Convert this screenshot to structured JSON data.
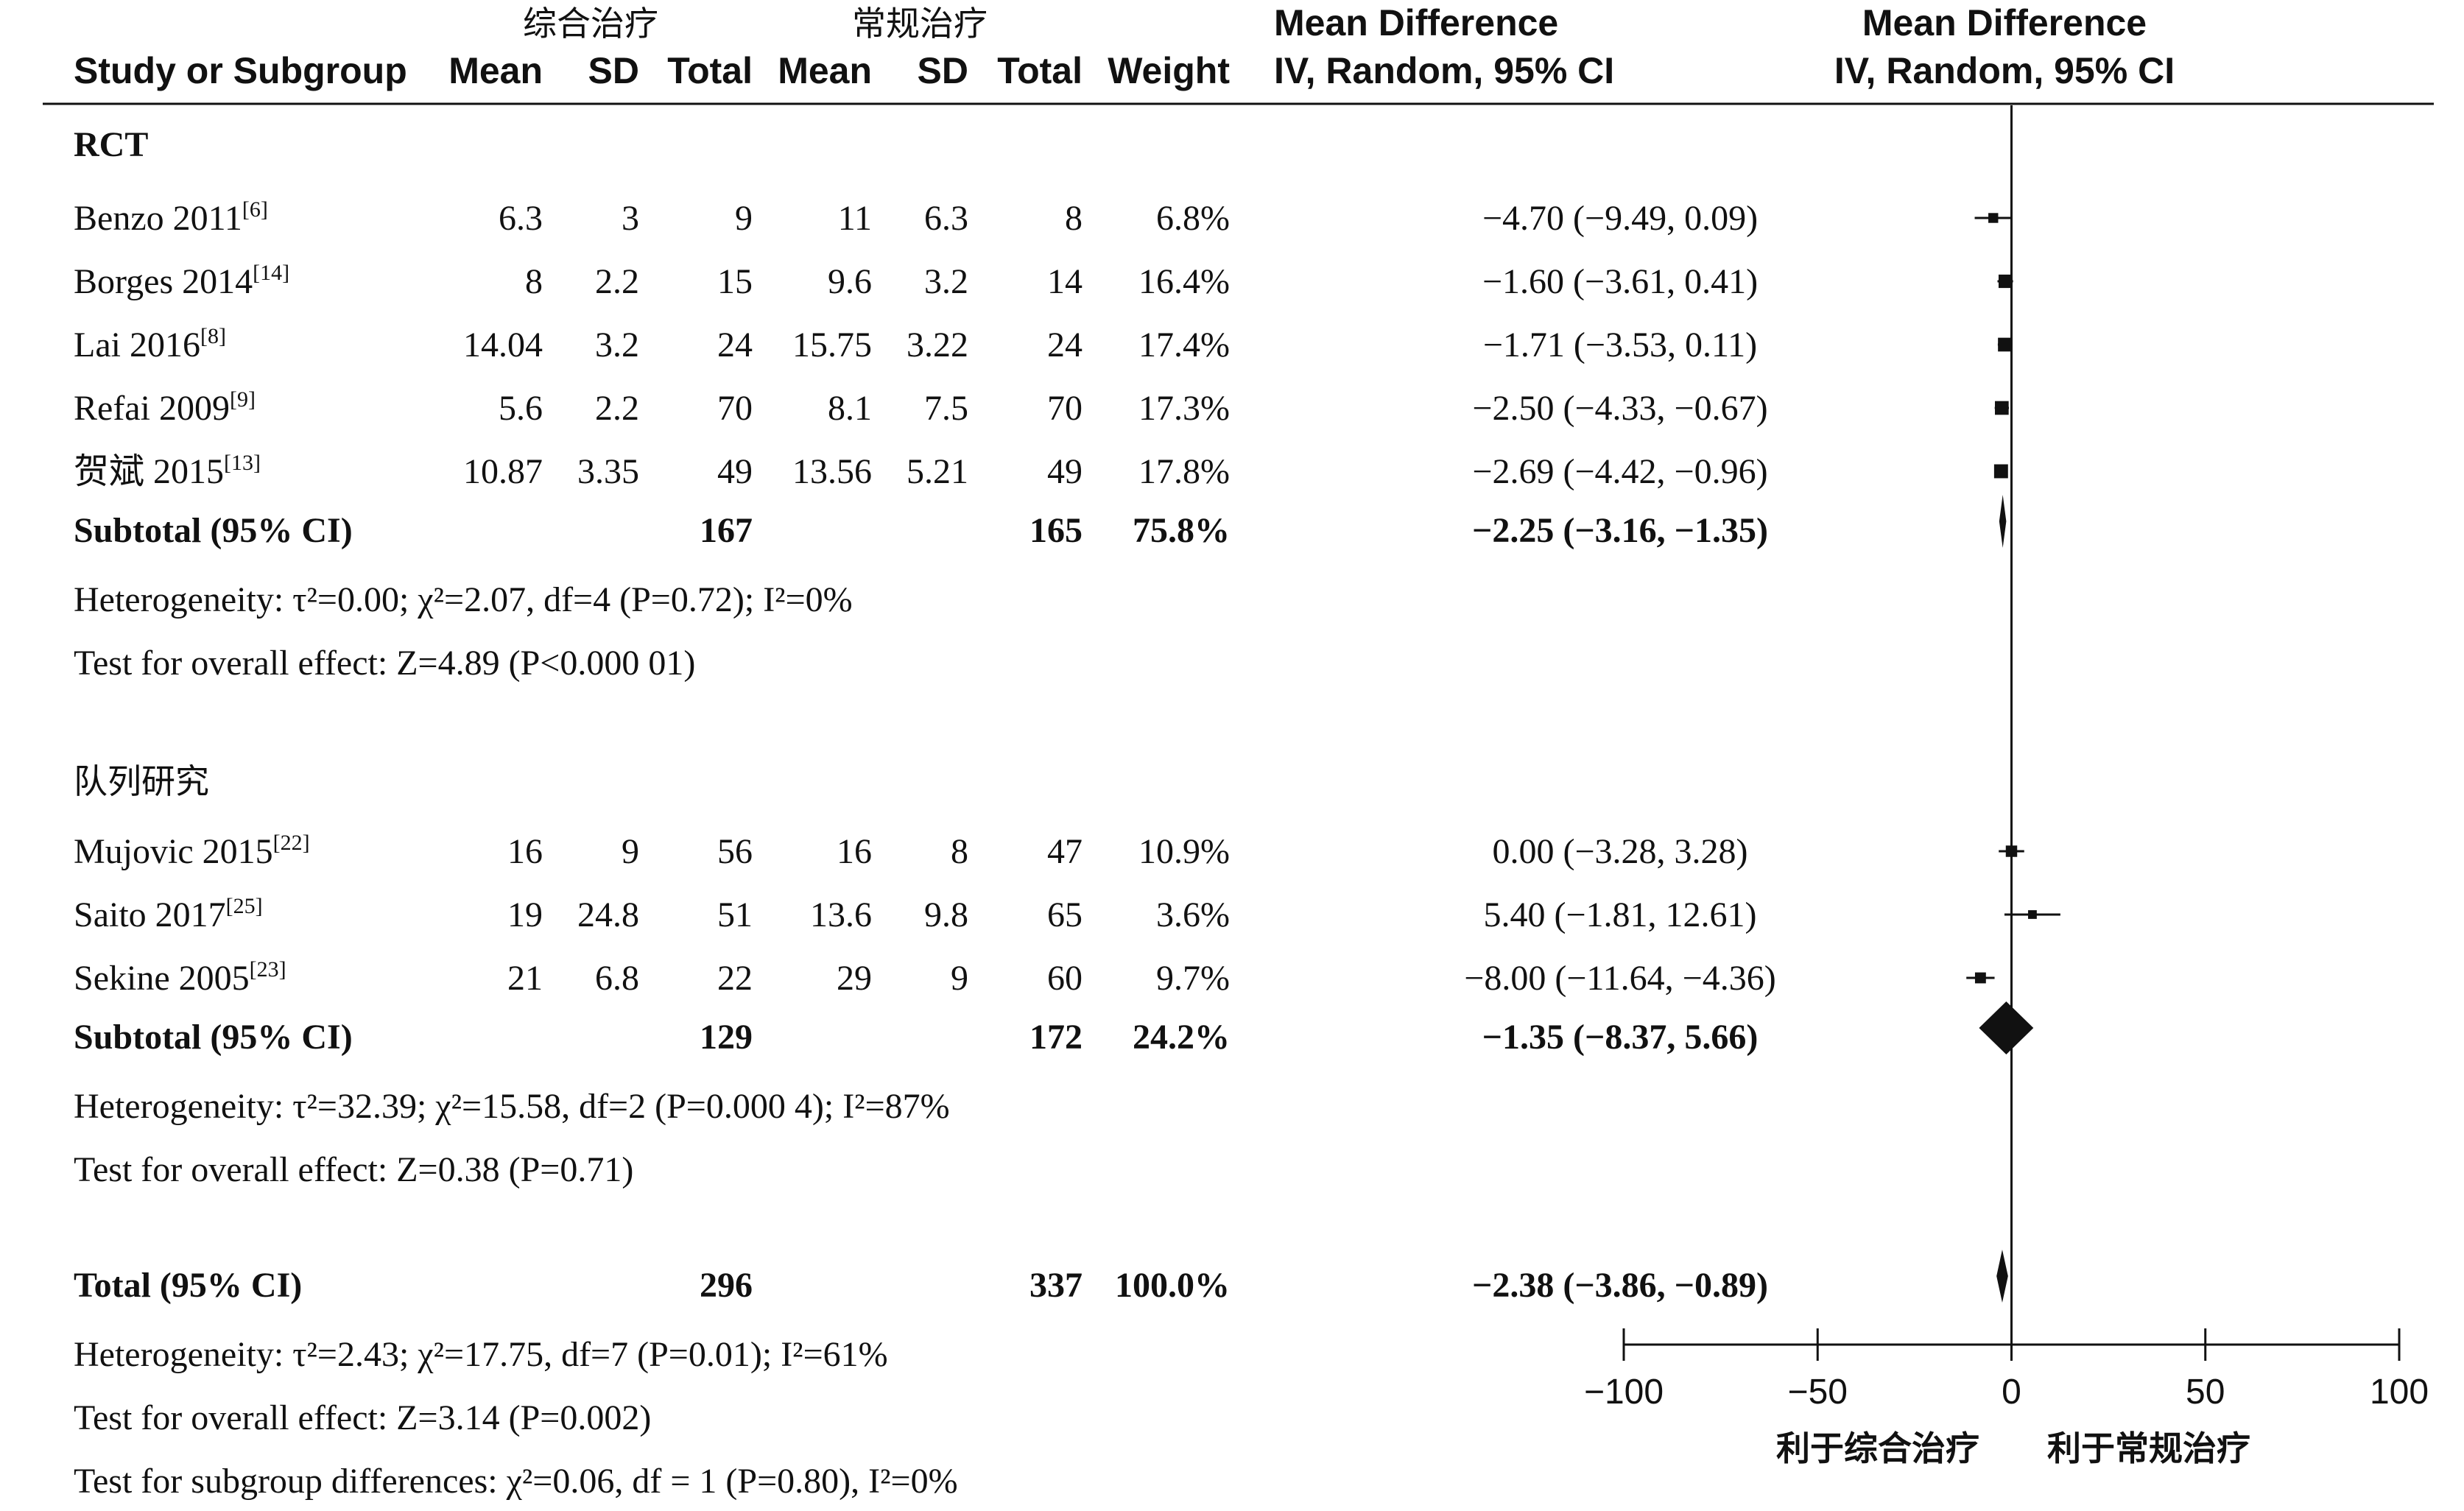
{
  "chart_data": {
    "type": "forest",
    "header": {
      "group1_name": "综合治疗",
      "group2_name": "常规治疗",
      "study_col": "Study or Subgroup",
      "mean": "Mean",
      "sd": "SD",
      "total": "Total",
      "weight": "Weight",
      "effect_title": "Mean Difference",
      "effect_sub": "IV, Random, 95% CI",
      "plot_title": "Mean Difference",
      "plot_sub": "IV, Random, 95% CI"
    },
    "subgroups": [
      {
        "name": "RCT",
        "studies": [
          {
            "name": "Benzo 2011",
            "ref": "[6]",
            "m1": "6.3",
            "sd1": "3",
            "n1": "9",
            "m2": "11",
            "sd2": "6.3",
            "n2": "8",
            "weight": "6.8%",
            "ci_text": "−4.70 (−9.49, 0.09)",
            "md": -4.7,
            "lo": -9.49,
            "hi": 0.09
          },
          {
            "name": "Borges 2014",
            "ref": "[14]",
            "m1": "8",
            "sd1": "2.2",
            "n1": "15",
            "m2": "9.6",
            "sd2": "3.2",
            "n2": "14",
            "weight": "16.4%",
            "ci_text": "−1.60 (−3.61, 0.41)",
            "md": -1.6,
            "lo": -3.61,
            "hi": 0.41
          },
          {
            "name": "Lai 2016",
            "ref": "[8]",
            "m1": "14.04",
            "sd1": "3.2",
            "n1": "24",
            "m2": "15.75",
            "sd2": "3.22",
            "n2": "24",
            "weight": "17.4%",
            "ci_text": "−1.71 (−3.53, 0.11)",
            "md": -1.71,
            "lo": -3.53,
            "hi": 0.11
          },
          {
            "name": "Refai 2009",
            "ref": "[9]",
            "m1": "5.6",
            "sd1": "2.2",
            "n1": "70",
            "m2": "8.1",
            "sd2": "7.5",
            "n2": "70",
            "weight": "17.3%",
            "ci_text": "−2.50 (−4.33, −0.67)",
            "md": -2.5,
            "lo": -4.33,
            "hi": -0.67
          },
          {
            "name": "贺斌 2015",
            "ref": "[13]",
            "m1": "10.87",
            "sd1": "3.35",
            "n1": "49",
            "m2": "13.56",
            "sd2": "5.21",
            "n2": "49",
            "weight": "17.8%",
            "ci_text": "−2.69 (−4.42, −0.96)",
            "md": -2.69,
            "lo": -4.42,
            "hi": -0.96
          }
        ],
        "subtotal": {
          "label": "Subtotal (95% CI)",
          "n1": "167",
          "n2": "165",
          "weight": "75.8%",
          "ci_text": "−2.25 (−3.16, −1.35)",
          "md": -2.25,
          "lo": -3.16,
          "hi": -1.35
        },
        "heterogeneity": "Heterogeneity: τ²=0.00; χ²=2.07, df=4 (P=0.72); I²=0%",
        "overall": "Test for overall effect: Z=4.89 (P<0.000 01)"
      },
      {
        "name": "队列研究",
        "studies": [
          {
            "name": "Mujovic 2015",
            "ref": "[22]",
            "m1": "16",
            "sd1": "9",
            "n1": "56",
            "m2": "16",
            "sd2": "8",
            "n2": "47",
            "weight": "10.9%",
            "ci_text": "0.00 (−3.28, 3.28)",
            "md": 0.0,
            "lo": -3.28,
            "hi": 3.28
          },
          {
            "name": "Saito 2017",
            "ref": "[25]",
            "m1": "19",
            "sd1": "24.8",
            "n1": "51",
            "m2": "13.6",
            "sd2": "9.8",
            "n2": "65",
            "weight": "3.6%",
            "ci_text": "5.40 (−1.81, 12.61)",
            "md": 5.4,
            "lo": -1.81,
            "hi": 12.61
          },
          {
            "name": "Sekine 2005",
            "ref": "[23]",
            "m1": "21",
            "sd1": "6.8",
            "n1": "22",
            "m2": "29",
            "sd2": "9",
            "n2": "60",
            "weight": "9.7%",
            "ci_text": "−8.00 (−11.64, −4.36)",
            "md": -8.0,
            "lo": -11.64,
            "hi": -4.36
          }
        ],
        "subtotal": {
          "label": "Subtotal (95% CI)",
          "n1": "129",
          "n2": "172",
          "weight": "24.2%",
          "ci_text": "−1.35 (−8.37, 5.66)",
          "md": -1.35,
          "lo": -8.37,
          "hi": 5.66
        },
        "heterogeneity": "Heterogeneity: τ²=32.39; χ²=15.58, df=2 (P=0.000 4); I²=87%",
        "overall": "Test for overall effect: Z=0.38 (P=0.71)"
      }
    ],
    "total": {
      "label": "Total (95% CI)",
      "n1": "296",
      "n2": "337",
      "weight": "100.0%",
      "ci_text": "−2.38 (−3.86, −0.89)",
      "md": -2.38,
      "lo": -3.86,
      "hi": -0.89
    },
    "total_heterogeneity": "Heterogeneity: τ²=2.43; χ²=17.75, df=7 (P=0.01); I²=61%",
    "total_overall": "Test for overall effect: Z=3.14 (P=0.002)",
    "subgroup_diff": "Test for subgroup differences: χ²=0.06, df = 1 (P=0.80), I²=0%",
    "xlim": [
      -100,
      100
    ],
    "xticks": [
      -100,
      -50,
      0,
      50,
      100
    ],
    "xtick_labels": [
      "−100",
      "−50",
      "0",
      "50",
      "100"
    ],
    "favours_left": "利于综合治疗",
    "favours_right": "利于常规治疗",
    "null_line": 0
  }
}
